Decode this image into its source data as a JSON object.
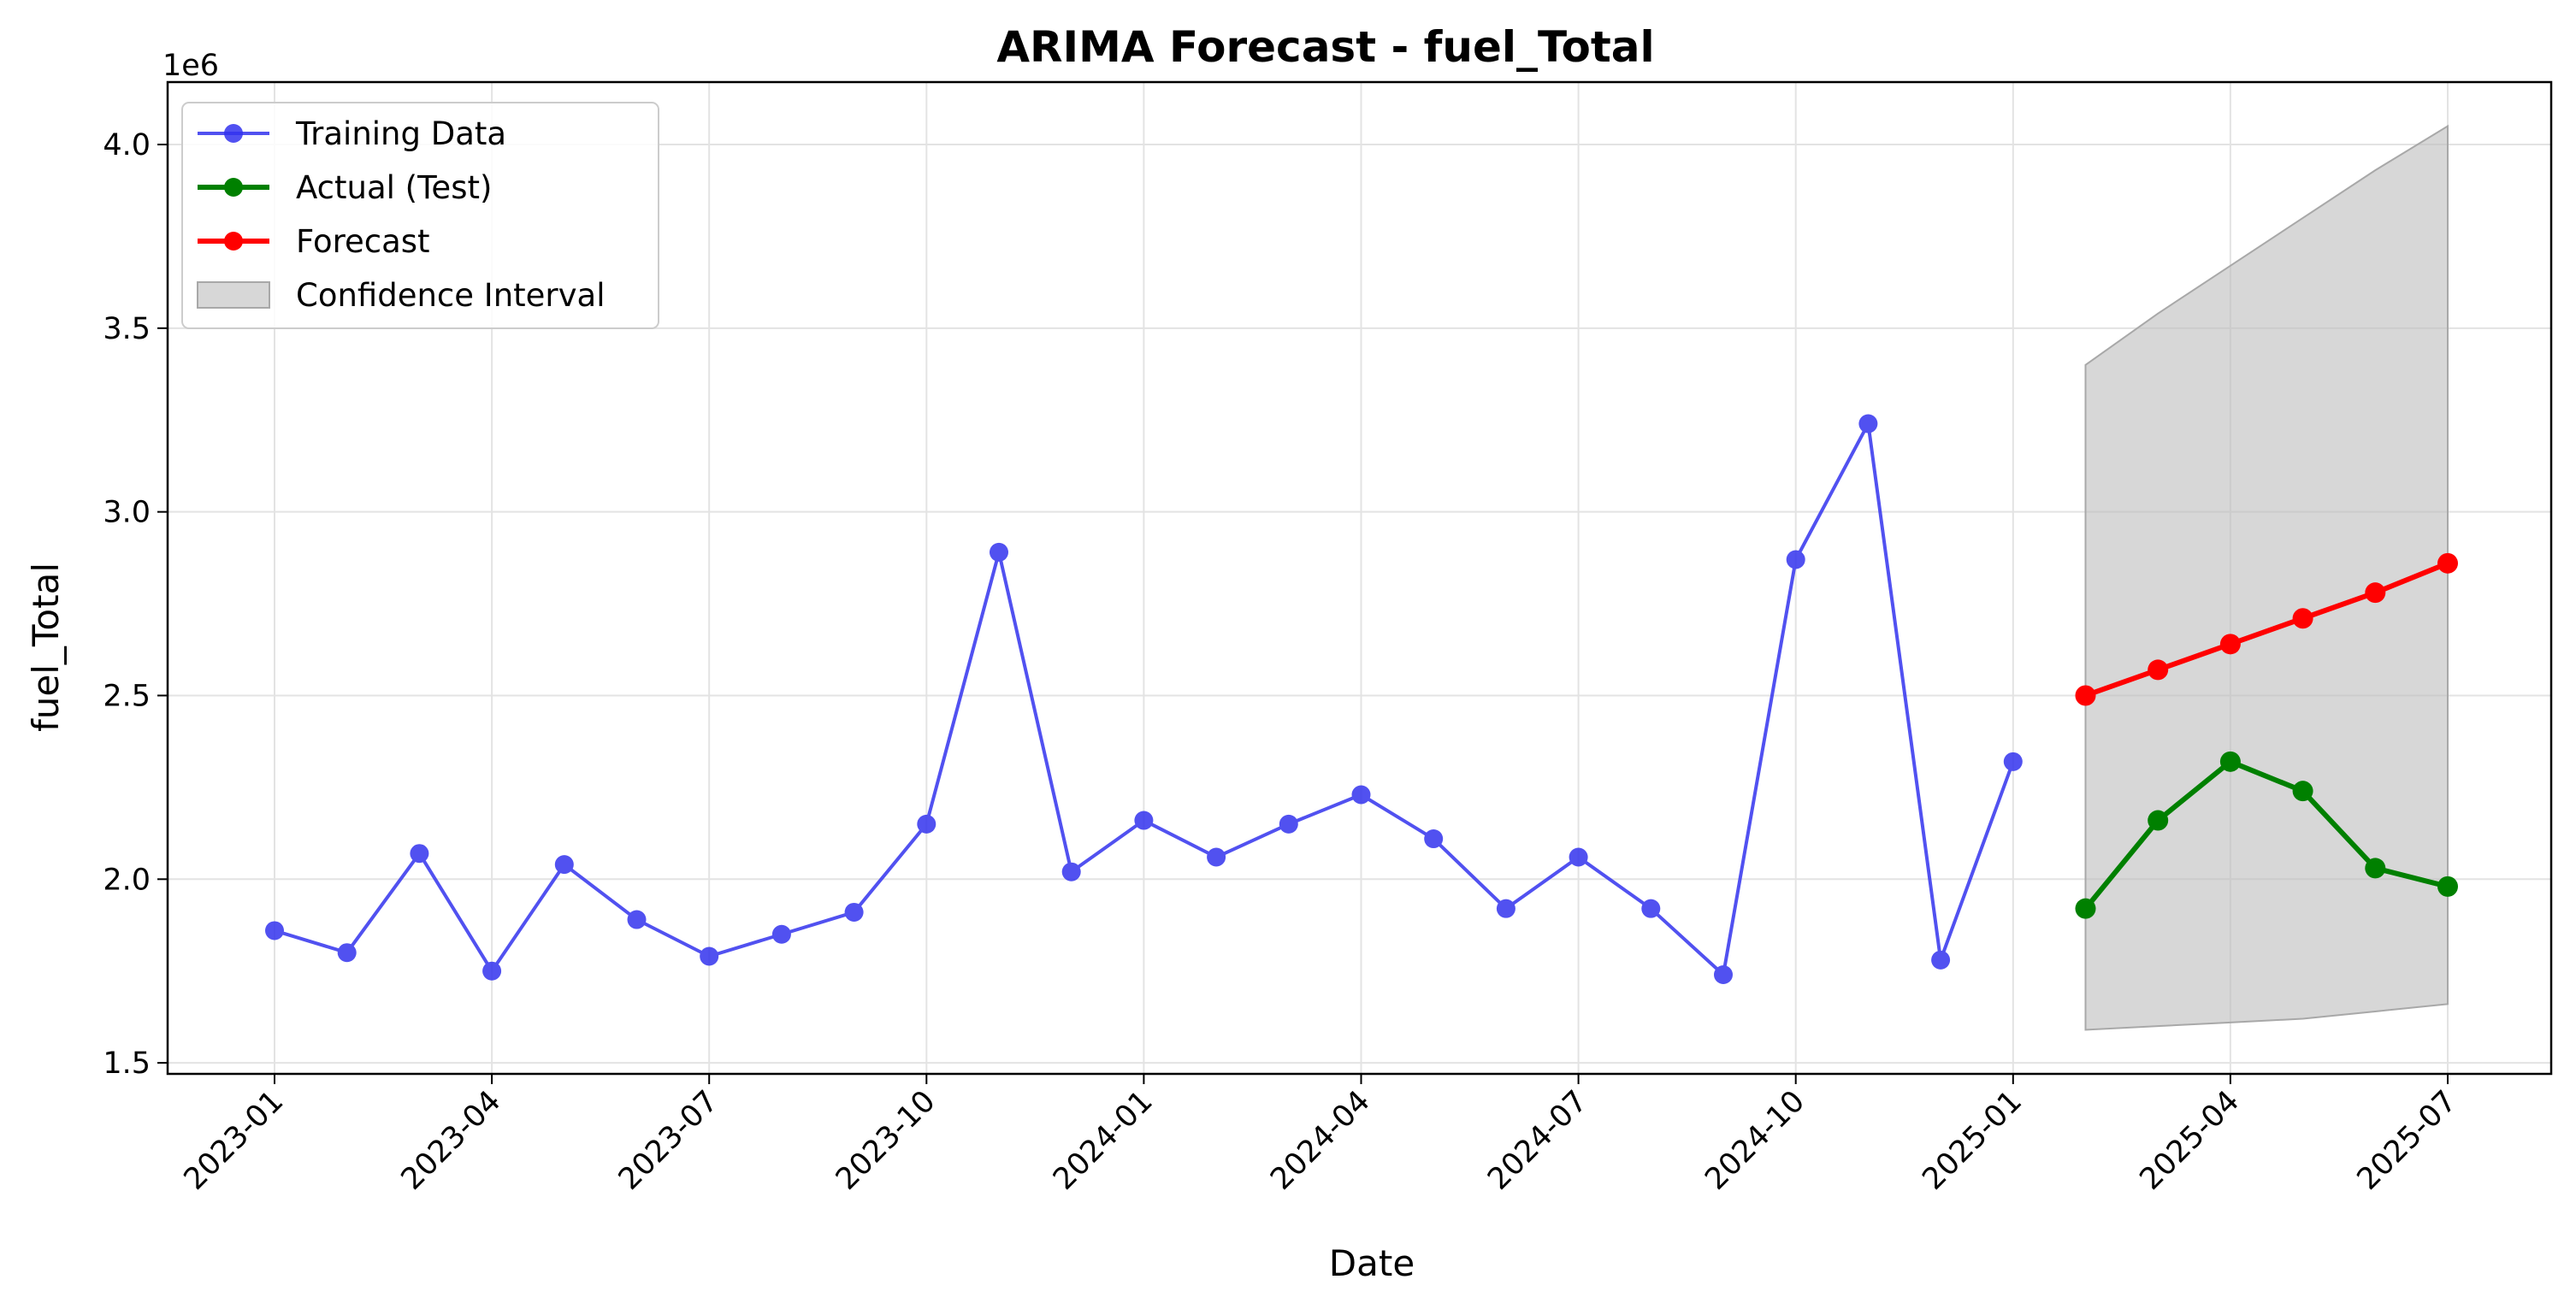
{
  "chart_data": {
    "type": "line",
    "title": "ARIMA Forecast - fuel_Total",
    "xlabel": "Date",
    "ylabel": "fuel_Total",
    "y_offset_label": "1e6",
    "x_ticks": [
      "2023-01",
      "2023-04",
      "2023-07",
      "2023-10",
      "2024-01",
      "2024-04",
      "2024-07",
      "2024-10",
      "2025-01",
      "2025-04",
      "2025-07"
    ],
    "y_ticks": [
      "1.5",
      "2.0",
      "2.5",
      "3.0",
      "3.5",
      "4.0"
    ],
    "ylim": [
      1.47,
      4.17
    ],
    "y_scale_note": "values in units of 1e6",
    "grid": true,
    "legend_position": "top-left",
    "series": [
      {
        "name": "Training Data",
        "color": "#3333ee",
        "x": [
          "2023-01",
          "2023-02",
          "2023-03",
          "2023-04",
          "2023-05",
          "2023-06",
          "2023-07",
          "2023-08",
          "2023-09",
          "2023-10",
          "2023-11",
          "2023-12",
          "2024-01",
          "2024-02",
          "2024-03",
          "2024-04",
          "2024-05",
          "2024-06",
          "2024-07",
          "2024-08",
          "2024-09",
          "2024-10",
          "2024-11",
          "2024-12",
          "2025-01"
        ],
        "values": [
          1.86,
          1.8,
          2.07,
          1.75,
          2.04,
          1.89,
          1.79,
          1.85,
          1.91,
          2.15,
          2.89,
          2.02,
          2.16,
          2.06,
          2.15,
          2.23,
          2.11,
          1.92,
          2.06,
          1.92,
          1.74,
          2.87,
          3.24,
          1.78,
          2.32
        ]
      },
      {
        "name": "Actual (Test)",
        "color": "#008000",
        "x": [
          "2025-02",
          "2025-03",
          "2025-04",
          "2025-05",
          "2025-06",
          "2025-07"
        ],
        "values": [
          1.92,
          2.16,
          2.32,
          2.24,
          2.03,
          1.98
        ]
      },
      {
        "name": "Forecast",
        "color": "#ff0000",
        "x": [
          "2025-02",
          "2025-03",
          "2025-04",
          "2025-05",
          "2025-06",
          "2025-07"
        ],
        "values": [
          2.5,
          2.57,
          2.64,
          2.71,
          2.78,
          2.86
        ]
      }
    ],
    "confidence_interval": {
      "name": "Confidence Interval",
      "color": "#bdbdbd",
      "x": [
        "2025-02",
        "2025-03",
        "2025-04",
        "2025-05",
        "2025-06",
        "2025-07"
      ],
      "lower": [
        1.59,
        1.6,
        1.61,
        1.62,
        1.64,
        1.66
      ],
      "upper": [
        3.4,
        3.54,
        3.67,
        3.8,
        3.93,
        4.05
      ]
    }
  }
}
